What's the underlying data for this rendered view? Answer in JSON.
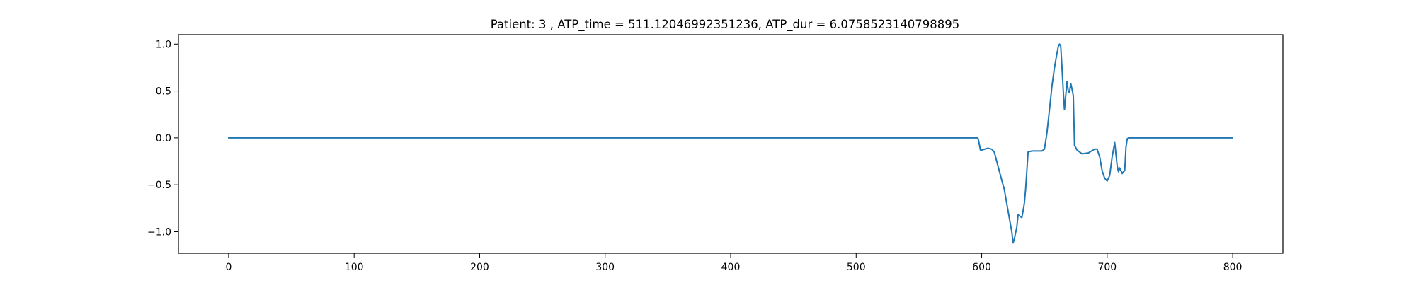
{
  "chart_data": {
    "type": "line",
    "title": "Patient: 3 , ATP_time = 511.12046992351236, ATP_dur = 6.0758523140798895",
    "xlabel": "",
    "ylabel": "",
    "xlim": [
      -40,
      840
    ],
    "ylim": [
      -1.23,
      1.1
    ],
    "grid": false,
    "line_color": "#1f77b4",
    "x_ticks": [
      0,
      100,
      200,
      300,
      400,
      500,
      600,
      700,
      800
    ],
    "x_tick_labels": [
      "0",
      "100",
      "200",
      "300",
      "400",
      "500",
      "600",
      "700",
      "800"
    ],
    "y_ticks": [
      -1.0,
      -0.5,
      0.0,
      0.5,
      1.0
    ],
    "y_tick_labels": [
      "−1.0",
      "−0.5",
      "0.0",
      "0.5",
      "1.0"
    ],
    "series": [
      {
        "x": [
          0,
          100,
          200,
          300,
          400,
          500,
          597,
          598,
          599,
          600,
          605,
          608,
          610,
          612,
          615,
          618,
          620,
          622,
          624,
          625,
          626,
          628,
          629,
          630,
          632,
          633,
          634,
          635,
          637,
          640,
          645,
          648,
          650,
          652,
          654,
          656,
          658,
          660,
          661,
          662,
          663,
          664,
          665,
          666,
          667,
          668,
          669,
          670,
          671,
          672,
          673,
          674,
          676,
          680,
          685,
          690,
          692,
          694,
          696,
          698,
          700,
          702,
          704,
          706,
          708,
          709,
          710,
          711,
          712,
          713,
          714,
          715,
          716,
          717,
          718,
          720,
          800
        ],
        "y": [
          0,
          0,
          0,
          0,
          0,
          0,
          0,
          -0.06,
          -0.13,
          -0.13,
          -0.11,
          -0.12,
          -0.15,
          -0.25,
          -0.4,
          -0.55,
          -0.7,
          -0.85,
          -1.0,
          -1.12,
          -1.08,
          -0.95,
          -0.82,
          -0.83,
          -0.85,
          -0.78,
          -0.7,
          -0.55,
          -0.15,
          -0.14,
          -0.14,
          -0.14,
          -0.12,
          0.05,
          0.3,
          0.55,
          0.75,
          0.9,
          0.97,
          1.0,
          0.98,
          0.75,
          0.5,
          0.3,
          0.45,
          0.6,
          0.5,
          0.48,
          0.58,
          0.52,
          0.45,
          -0.08,
          -0.13,
          -0.17,
          -0.16,
          -0.12,
          -0.12,
          -0.2,
          -0.35,
          -0.43,
          -0.46,
          -0.4,
          -0.2,
          -0.05,
          -0.3,
          -0.36,
          -0.32,
          -0.35,
          -0.38,
          -0.36,
          -0.35,
          -0.1,
          -0.01,
          0,
          0,
          0,
          0
        ]
      }
    ]
  }
}
